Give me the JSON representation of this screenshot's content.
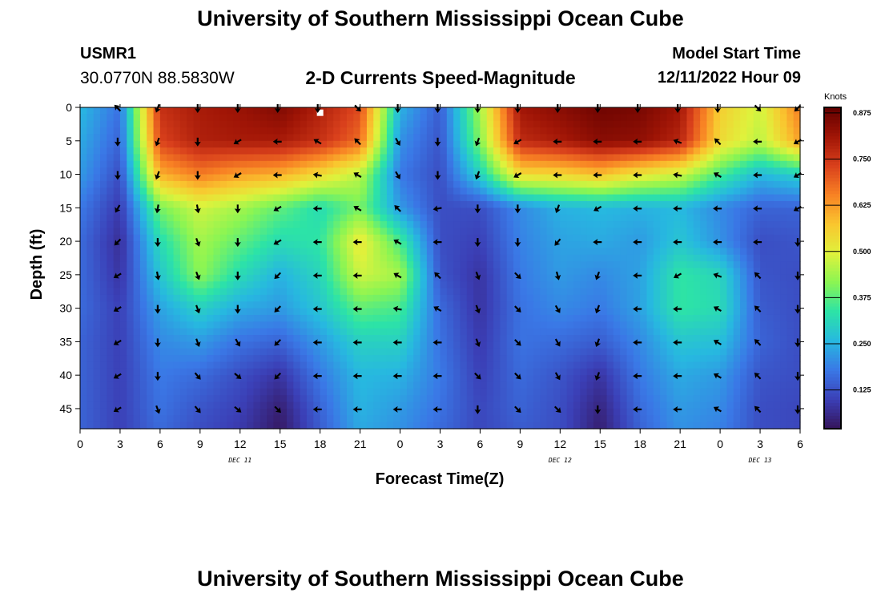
{
  "page": {
    "title": "University of Southern Mississippi Ocean Cube",
    "station_id": "USMR1",
    "coords": "30.0770N  88.5830W",
    "heading": "2-D Currents Speed-Magnitude",
    "model_start_label": "Model Start Time",
    "model_start_value": "12/11/2022 Hour 09",
    "footer_title": "University of Southern Mississippi Ocean Cube"
  },
  "chart_data": {
    "type": "heatmap",
    "title": "2-D Currents Speed-Magnitude",
    "xlabel": "Forecast Time(Z)",
    "ylabel": "Depth (ft)",
    "x_ticks": [
      "0",
      "3",
      "6",
      "9",
      "12",
      "15",
      "18",
      "21",
      "0",
      "3",
      "6",
      "9",
      "12",
      "15",
      "18",
      "21",
      "0",
      "3",
      "6"
    ],
    "y_ticks": [
      "0",
      "5",
      "10",
      "15",
      "20",
      "25",
      "30",
      "35",
      "40",
      "45"
    ],
    "y_tick_values": [
      0,
      5,
      10,
      15,
      20,
      25,
      30,
      35,
      40,
      45
    ],
    "ylim": [
      48,
      0
    ],
    "xlim_hours": [
      0,
      54
    ],
    "day_labels": [
      {
        "text": "DEC 11",
        "hour": 12
      },
      {
        "text": "DEC 12",
        "hour": 36
      },
      {
        "text": "DEC 13",
        "hour": 51
      }
    ],
    "colorbar": {
      "unit": "Knots",
      "ticks": [
        "0.875",
        "0.750",
        "0.625",
        "0.500",
        "0.375",
        "0.250",
        "0.125"
      ],
      "tick_values": [
        0.875,
        0.75,
        0.625,
        0.5,
        0.375,
        0.25,
        0.125
      ],
      "range": [
        0.02,
        0.89
      ],
      "colors": [
        "#35145a",
        "#3b3fb6",
        "#3a78e6",
        "#27b8e0",
        "#2ce3a7",
        "#8af553",
        "#dff23c",
        "#f9c62f",
        "#f88224",
        "#d9401c",
        "#a01506",
        "#600000"
      ]
    },
    "speed_rows": {
      "depths": [
        0,
        5,
        10,
        15,
        20,
        25,
        30,
        35,
        40,
        45,
        48
      ],
      "hours": [
        0,
        3,
        6,
        9,
        12,
        15,
        18,
        21,
        24,
        27,
        30,
        33,
        36,
        39,
        42,
        45,
        48,
        51,
        54
      ],
      "values": [
        [
          0.26,
          0.17,
          0.76,
          0.8,
          0.82,
          0.85,
          0.79,
          0.72,
          0.25,
          0.14,
          0.44,
          0.81,
          0.84,
          0.87,
          0.86,
          0.81,
          0.56,
          0.48,
          0.66
        ],
        [
          0.24,
          0.15,
          0.73,
          0.79,
          0.8,
          0.8,
          0.76,
          0.68,
          0.21,
          0.13,
          0.41,
          0.77,
          0.8,
          0.84,
          0.83,
          0.78,
          0.54,
          0.46,
          0.62
        ],
        [
          0.22,
          0.12,
          0.6,
          0.66,
          0.62,
          0.6,
          0.54,
          0.46,
          0.18,
          0.12,
          0.3,
          0.54,
          0.55,
          0.58,
          0.52,
          0.48,
          0.36,
          0.26,
          0.3
        ],
        [
          0.18,
          0.09,
          0.4,
          0.48,
          0.44,
          0.38,
          0.32,
          0.4,
          0.22,
          0.12,
          0.12,
          0.2,
          0.25,
          0.26,
          0.25,
          0.26,
          0.2,
          0.15,
          0.15
        ],
        [
          0.16,
          0.07,
          0.32,
          0.44,
          0.38,
          0.32,
          0.34,
          0.52,
          0.36,
          0.12,
          0.1,
          0.19,
          0.23,
          0.24,
          0.22,
          0.28,
          0.21,
          0.12,
          0.13
        ],
        [
          0.16,
          0.08,
          0.28,
          0.42,
          0.32,
          0.25,
          0.31,
          0.48,
          0.44,
          0.13,
          0.08,
          0.18,
          0.22,
          0.2,
          0.23,
          0.34,
          0.31,
          0.13,
          0.12
        ],
        [
          0.16,
          0.1,
          0.23,
          0.3,
          0.24,
          0.22,
          0.28,
          0.38,
          0.36,
          0.16,
          0.08,
          0.17,
          0.2,
          0.18,
          0.23,
          0.34,
          0.32,
          0.14,
          0.12
        ],
        [
          0.15,
          0.1,
          0.2,
          0.22,
          0.17,
          0.15,
          0.22,
          0.3,
          0.3,
          0.17,
          0.09,
          0.17,
          0.16,
          0.14,
          0.2,
          0.28,
          0.27,
          0.15,
          0.12
        ],
        [
          0.15,
          0.1,
          0.18,
          0.16,
          0.12,
          0.08,
          0.18,
          0.26,
          0.25,
          0.18,
          0.1,
          0.16,
          0.13,
          0.08,
          0.18,
          0.24,
          0.22,
          0.13,
          0.12
        ],
        [
          0.15,
          0.1,
          0.17,
          0.13,
          0.1,
          0.04,
          0.15,
          0.25,
          0.22,
          0.17,
          0.11,
          0.15,
          0.12,
          0.05,
          0.16,
          0.22,
          0.2,
          0.12,
          0.11
        ],
        [
          0.15,
          0.1,
          0.16,
          0.12,
          0.09,
          0.03,
          0.14,
          0.24,
          0.21,
          0.16,
          0.11,
          0.14,
          0.12,
          0.04,
          0.15,
          0.21,
          0.19,
          0.12,
          0.11
        ]
      ]
    },
    "vectors": {
      "depths": [
        0,
        5,
        10,
        15,
        20,
        25,
        30,
        35,
        40,
        45
      ],
      "hours": [
        3,
        6,
        9,
        12,
        15,
        18,
        21,
        24,
        27,
        30,
        33,
        36,
        39,
        42,
        45,
        48,
        51,
        54
      ],
      "directions_deg": [
        [
          315,
          200,
          180,
          180,
          180,
          180,
          135,
          180,
          180,
          180,
          180,
          180,
          180,
          180,
          180,
          180,
          135,
          225
        ],
        [
          180,
          200,
          180,
          240,
          270,
          300,
          315,
          150,
          180,
          200,
          240,
          270,
          270,
          270,
          290,
          315,
          270,
          240
        ],
        [
          180,
          200,
          180,
          240,
          270,
          280,
          300,
          150,
          180,
          200,
          240,
          270,
          270,
          270,
          280,
          300,
          270,
          240
        ],
        [
          210,
          190,
          170,
          180,
          240,
          270,
          300,
          315,
          260,
          180,
          180,
          200,
          240,
          270,
          270,
          270,
          270,
          240
        ],
        [
          225,
          180,
          160,
          180,
          240,
          270,
          270,
          300,
          270,
          180,
          180,
          220,
          270,
          270,
          270,
          270,
          270,
          180
        ],
        [
          240,
          170,
          160,
          180,
          225,
          270,
          270,
          300,
          315,
          160,
          135,
          165,
          200,
          270,
          240,
          290,
          315,
          180
        ],
        [
          240,
          180,
          160,
          180,
          225,
          270,
          270,
          280,
          300,
          160,
          135,
          150,
          200,
          270,
          270,
          300,
          315,
          180
        ],
        [
          240,
          180,
          160,
          150,
          225,
          270,
          270,
          270,
          270,
          160,
          135,
          150,
          200,
          270,
          270,
          300,
          315,
          180
        ],
        [
          240,
          180,
          140,
          130,
          225,
          270,
          270,
          270,
          270,
          135,
          135,
          150,
          200,
          270,
          270,
          300,
          315,
          180
        ],
        [
          240,
          160,
          140,
          130,
          135,
          270,
          270,
          270,
          270,
          180,
          135,
          135,
          180,
          270,
          270,
          300,
          315,
          180
        ]
      ]
    },
    "white_marker": {
      "hour": 18,
      "depth": 0.8
    }
  }
}
